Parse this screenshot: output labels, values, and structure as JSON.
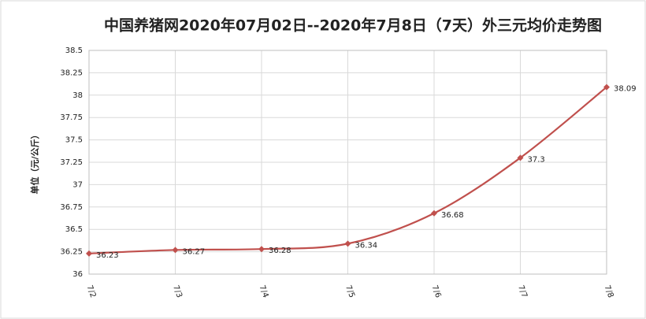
{
  "chart_data": {
    "type": "line",
    "title": "中国养猪网2020年07月02日--2020年7月8日（7天）外三元均价走势图",
    "y_label": "单位（元/公斤）",
    "categories": [
      "7/2",
      "7/3",
      "7/4",
      "7/5",
      "7/6",
      "7/7",
      "7/8"
    ],
    "series": [
      {
        "name": "外三元均价",
        "color": "#c0504d",
        "values": [
          36.23,
          36.27,
          36.28,
          36.34,
          36.68,
          37.3,
          38.09
        ]
      }
    ],
    "ylim": [
      36,
      38.5
    ],
    "yticks": [
      36,
      36.25,
      36.5,
      36.75,
      37,
      37.25,
      37.5,
      37.75,
      38,
      38.25,
      38.5
    ],
    "grid": true
  }
}
